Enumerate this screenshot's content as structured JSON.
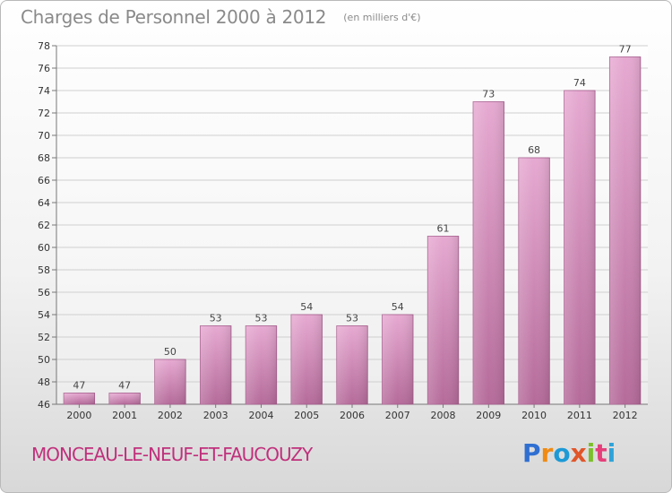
{
  "header": {
    "title": "Charges de Personnel 2000 à 2012",
    "unit": "(en milliers d'€)"
  },
  "footer": {
    "town": "MONCEAU-LE-NEUF-ET-FAUCOUZY",
    "logo_letters": [
      "P",
      "r",
      "o",
      "x",
      "i",
      "t",
      "i"
    ]
  },
  "colors": {
    "bar_top": "#e6a9d1",
    "bar_bottom": "#b56b9a",
    "town_text": "#c0307c"
  },
  "chart_data": {
    "type": "bar",
    "title": "Charges de Personnel 2000 à 2012",
    "subtitle": "(en milliers d'€)",
    "xlabel": "",
    "ylabel": "",
    "categories": [
      "2000",
      "2001",
      "2002",
      "2003",
      "2004",
      "2005",
      "2006",
      "2007",
      "2008",
      "2009",
      "2010",
      "2011",
      "2012"
    ],
    "values": [
      47,
      47,
      50,
      53,
      53,
      54,
      53,
      54,
      61,
      73,
      68,
      74,
      77
    ],
    "ylim": [
      46,
      78
    ],
    "yticks": [
      46,
      48,
      50,
      52,
      54,
      56,
      58,
      60,
      62,
      64,
      66,
      68,
      70,
      72,
      74,
      76,
      78
    ],
    "grid": true,
    "legend": "none"
  }
}
